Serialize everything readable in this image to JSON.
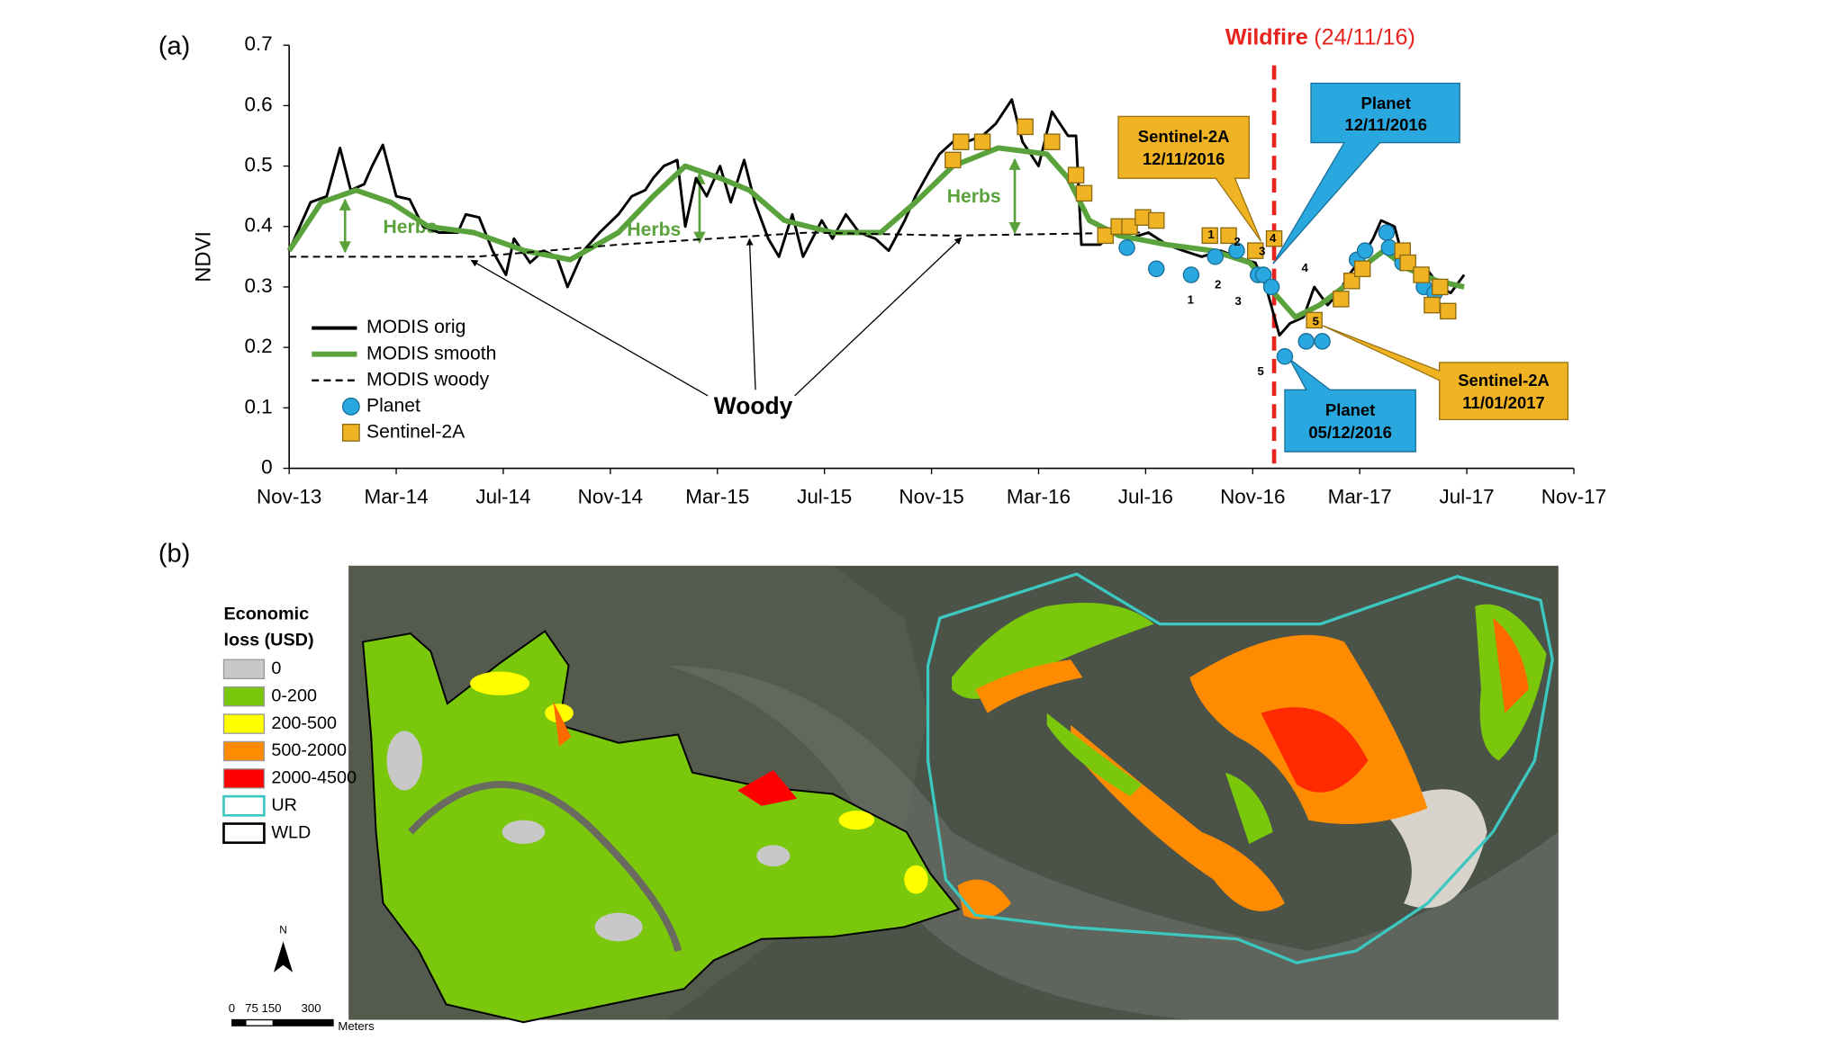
{
  "panel_labels": [
    "(a)",
    "(b)"
  ],
  "chart_data": {
    "type": "line",
    "ylabel": "NDVI",
    "legend": "lower left",
    "xlim": [
      0,
      48
    ],
    "ylim": [
      0,
      0.7
    ],
    "yticks": [
      0,
      0.1,
      0.2,
      0.3,
      0.4,
      0.5,
      0.6,
      0.7
    ],
    "xticks": [
      {
        "value": 0,
        "label": "Nov-13"
      },
      {
        "value": 4,
        "label": "Mar-14"
      },
      {
        "value": 8,
        "label": "Jul-14"
      },
      {
        "value": 12,
        "label": "Nov-14"
      },
      {
        "value": 16,
        "label": "Mar-15"
      },
      {
        "value": 20,
        "label": "Jul-15"
      },
      {
        "value": 24,
        "label": "Nov-15"
      },
      {
        "value": 28,
        "label": "Mar-16"
      },
      {
        "value": 32,
        "label": "Jul-16"
      },
      {
        "value": 36,
        "label": "Nov-16"
      },
      {
        "value": 40,
        "label": "Mar-17"
      },
      {
        "value": 44,
        "label": "Jul-17"
      },
      {
        "value": 48,
        "label": "Nov-17"
      }
    ],
    "series": [
      {
        "name": "MODIS orig",
        "color": "#000000",
        "style": "solid",
        "x": [
          0,
          0.8,
          1.4,
          1.9,
          2.3,
          2.8,
          3.1,
          3.5,
          4.0,
          4.5,
          5.0,
          5.6,
          6.3,
          6.6,
          7.1,
          7.6,
          8.1,
          8.4,
          9.0,
          9.5,
          10.0,
          10.4,
          11.0,
          11.6,
          12.3,
          12.8,
          13.3,
          13.6,
          14.0,
          14.5,
          14.8,
          15.2,
          15.6,
          16.1,
          16.5,
          17.0,
          17.4,
          17.9,
          18.3,
          18.8,
          19.2,
          19.9,
          20.3,
          20.8,
          21.3,
          21.9,
          22.4,
          23.0,
          23.4,
          23.9,
          24.3,
          24.8,
          25.3,
          25.9,
          26.4,
          27.0,
          27.4,
          28.0,
          28.5,
          29.1,
          29.4,
          29.6,
          30.3,
          30.8,
          31.4,
          32.1,
          32.8,
          33.4,
          34.1,
          34.8,
          35.4,
          36.1,
          36.5,
          37.0,
          37.4,
          37.9,
          38.3,
          38.8,
          39.2,
          39.6,
          40.1,
          40.5,
          40.8,
          41.3,
          41.6,
          42.1,
          42.5,
          43.0,
          43.4,
          43.9
        ],
        "values": [
          0.36,
          0.44,
          0.45,
          0.53,
          0.46,
          0.47,
          0.5,
          0.535,
          0.45,
          0.445,
          0.4,
          0.39,
          0.39,
          0.42,
          0.415,
          0.36,
          0.32,
          0.38,
          0.34,
          0.36,
          0.35,
          0.3,
          0.36,
          0.39,
          0.42,
          0.45,
          0.46,
          0.48,
          0.5,
          0.51,
          0.4,
          0.48,
          0.45,
          0.5,
          0.44,
          0.51,
          0.44,
          0.38,
          0.35,
          0.42,
          0.35,
          0.41,
          0.38,
          0.42,
          0.39,
          0.38,
          0.36,
          0.41,
          0.45,
          0.49,
          0.52,
          0.54,
          0.54,
          0.55,
          0.57,
          0.61,
          0.54,
          0.5,
          0.59,
          0.55,
          0.55,
          0.37,
          0.37,
          0.39,
          0.38,
          0.39,
          0.37,
          0.36,
          0.35,
          0.36,
          0.35,
          0.34,
          0.3,
          0.22,
          0.24,
          0.25,
          0.3,
          0.27,
          0.29,
          0.32,
          0.35,
          0.38,
          0.41,
          0.4,
          0.35,
          0.33,
          0.33,
          0.3,
          0.29,
          0.32
        ]
      },
      {
        "name": "MODIS smooth",
        "color": "#5aa33c",
        "style": "thick",
        "x": [
          0,
          1.2,
          2.5,
          3.8,
          5.2,
          6.9,
          8.8,
          10.5,
          12.3,
          13.6,
          14.8,
          16.1,
          17.2,
          18.5,
          20.3,
          22.1,
          23.4,
          24.8,
          26.5,
          28.3,
          29.1,
          29.9,
          31.0,
          32.8,
          34.5,
          35.9,
          36.8,
          37.6,
          38.5,
          39.4,
          40.3,
          40.9,
          41.8,
          42.9,
          43.9
        ],
        "values": [
          0.36,
          0.44,
          0.46,
          0.44,
          0.4,
          0.39,
          0.36,
          0.345,
          0.39,
          0.45,
          0.5,
          0.48,
          0.46,
          0.41,
          0.39,
          0.39,
          0.44,
          0.5,
          0.53,
          0.52,
          0.48,
          0.41,
          0.385,
          0.37,
          0.36,
          0.34,
          0.29,
          0.25,
          0.27,
          0.3,
          0.34,
          0.36,
          0.33,
          0.31,
          0.3
        ]
      },
      {
        "name": "MODIS woody",
        "color": "#000000",
        "style": "dashed",
        "x": [
          0,
          7.0,
          12.3,
          19.4,
          24.8,
          31.9
        ],
        "values": [
          0.35,
          0.35,
          0.37,
          0.39,
          0.385,
          0.39
        ]
      },
      {
        "name": "Planet",
        "color": "#29a8e0",
        "style": "circle",
        "x": [
          31.3,
          32.4,
          33.7,
          34.6,
          35.4,
          36.2,
          36.4,
          36.7,
          37.2,
          38.0,
          38.6,
          39.9,
          40.2,
          41.0,
          41.1,
          41.6,
          42.4,
          42.8
        ],
        "values": [
          0.365,
          0.33,
          0.32,
          0.35,
          0.36,
          0.32,
          0.32,
          0.3,
          0.185,
          0.21,
          0.21,
          0.345,
          0.36,
          0.39,
          0.365,
          0.34,
          0.3,
          0.29
        ]
      },
      {
        "name": "Sentinel-2A",
        "color": "#f0b323",
        "style": "square",
        "x": [
          24.8,
          25.1,
          25.9,
          27.5,
          28.5,
          29.4,
          29.7,
          30.5,
          31.0,
          31.4,
          31.9,
          32.4,
          34.4,
          35.1,
          36.1,
          36.8,
          38.3,
          39.3,
          39.7,
          40.1,
          41.6,
          41.8,
          42.3,
          42.7,
          43.0,
          43.3
        ],
        "values": [
          0.51,
          0.54,
          0.54,
          0.565,
          0.54,
          0.485,
          0.455,
          0.385,
          0.4,
          0.4,
          0.415,
          0.41,
          0.385,
          0.385,
          0.36,
          0.38,
          0.245,
          0.28,
          0.31,
          0.33,
          0.36,
          0.34,
          0.32,
          0.27,
          0.3,
          0.26
        ]
      }
    ],
    "event": {
      "x": 36.8,
      "label": "Wildfire",
      "date": "(24/11/16)",
      "color": "#e8221c"
    },
    "annotations": {
      "herbs": "Herbs",
      "woody": "Woody",
      "numbers": [
        "1",
        "2",
        "3",
        "4",
        "5"
      ]
    },
    "callouts": [
      {
        "title": "Sentinel-2A",
        "date": "12/11/2016"
      },
      {
        "title": "Planet",
        "date": "12/11/2016"
      },
      {
        "title": "Planet",
        "date": "05/12/2016"
      },
      {
        "title": "Sentinel-2A",
        "date": "11/01/2017"
      }
    ]
  },
  "map": {
    "legend_title": [
      "Economic",
      "loss (USD)"
    ],
    "legend": [
      {
        "label": "0",
        "color": "#c8c8c8"
      },
      {
        "label": "0-200",
        "color": "#7ac70c"
      },
      {
        "label": "200-500",
        "color": "#ffff00"
      },
      {
        "label": "500-2000",
        "color": "#ff8c00"
      },
      {
        "label": "2000-4500",
        "color": "#ff0000"
      },
      {
        "label": "UR",
        "color": "#3cc8c0",
        "outline": true
      },
      {
        "label": "WLD",
        "color": "#000000",
        "outline": true
      }
    ],
    "north": "N",
    "scale": "0   75 150      300",
    "scale_unit": "Meters"
  }
}
